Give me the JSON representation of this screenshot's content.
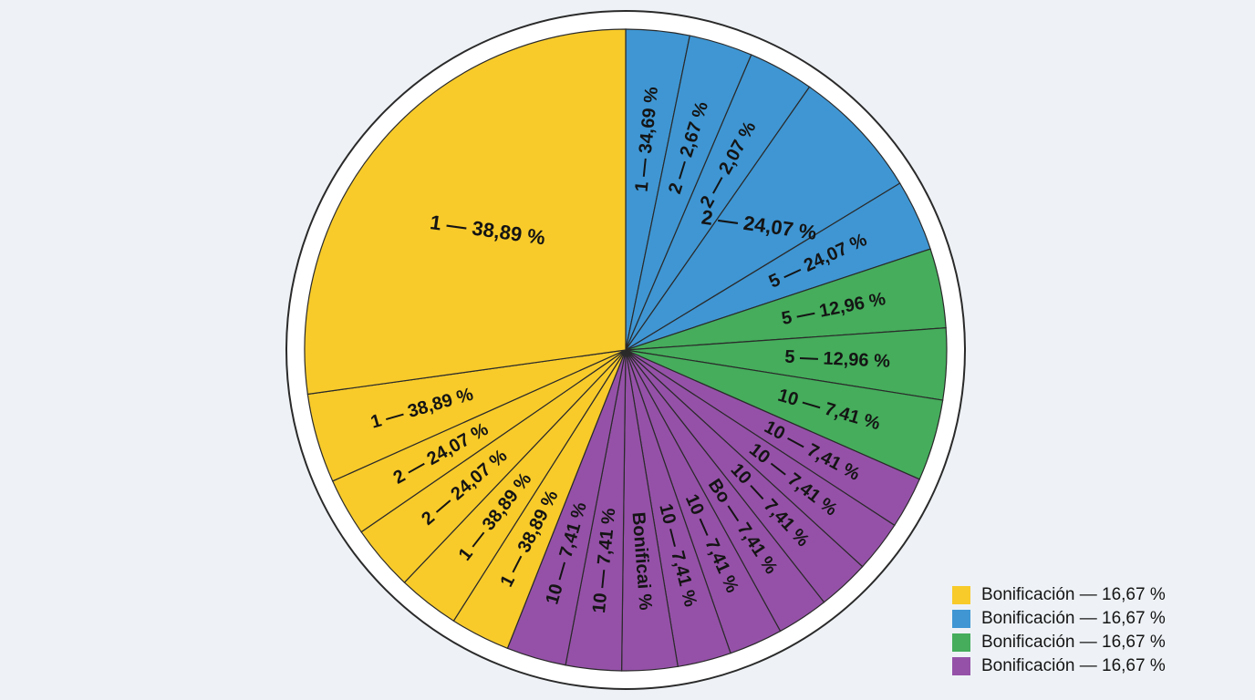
{
  "colors": {
    "yellow": "#f8cb2a",
    "blue": "#3f96d3",
    "green": "#45ad5c",
    "purple": "#9551a8",
    "outline": "#2a2a2a",
    "background": "#eef2f6"
  },
  "chart_data": {
    "type": "pie",
    "start_angle_deg": 0,
    "direction": "clockwise",
    "slices": [
      {
        "label": "1 — 34,69 %",
        "value": 3.2,
        "color": "blue"
      },
      {
        "label": "2 — 2,67 %",
        "value": 3.2,
        "color": "blue"
      },
      {
        "label": "2 — 2,07 %",
        "value": 3.3,
        "color": "blue"
      },
      {
        "label": "2 — 24,07 %",
        "value": 6.6,
        "color": "blue"
      },
      {
        "label": "5 — 24,07 %",
        "value": 3.6,
        "color": "blue"
      },
      {
        "label": "5 — 12,96 %",
        "value": 4.0,
        "color": "green"
      },
      {
        "label": "5 — 12,96 %",
        "value": 3.6,
        "color": "green"
      },
      {
        "label": "10 — 7,41  %",
        "value": 4.1,
        "color": "green"
      },
      {
        "label": "10 — 7,41 %",
        "value": 2.6,
        "color": "purple"
      },
      {
        "label": "10 — 7,41 %",
        "value": 2.6,
        "color": "purple"
      },
      {
        "label": "10 — 7,41 %",
        "value": 2.6,
        "color": "purple"
      },
      {
        "label": "Bo — 7,41 %",
        "value": 2.6,
        "color": "purple"
      },
      {
        "label": "10 — 7,41 %",
        "value": 2.7,
        "color": "purple"
      },
      {
        "label": "10 — 7,41 %",
        "value": 2.7,
        "color": "purple"
      },
      {
        "label": "Bonificai %",
        "value": 2.8,
        "color": "purple"
      },
      {
        "label": "10 — 7,41 %",
        "value": 2.8,
        "color": "purple"
      },
      {
        "label": "10 — 7,41 %",
        "value": 3.0,
        "color": "purple"
      },
      {
        "label": "1 — 38,89 %",
        "value": 3.0,
        "color": "yellow"
      },
      {
        "label": "1 — 38,89 %",
        "value": 3.1,
        "color": "yellow"
      },
      {
        "label": "2 — 24,07 %",
        "value": 3.3,
        "color": "yellow"
      },
      {
        "label": "2 — 24,07 %",
        "value": 2.9,
        "color": "yellow"
      },
      {
        "label": "1 — 38,89 %",
        "value": 4.5,
        "color": "yellow"
      },
      {
        "label": "1 — 38,89 %",
        "value": 27.2,
        "color": "yellow"
      }
    ],
    "legend": {
      "placement": "bottom-right",
      "entries": [
        {
          "label": "Bonificación — 16,67 %",
          "color": "yellow"
        },
        {
          "label": "Bonificación — 16,67 %",
          "color": "blue"
        },
        {
          "label": "Bonificación — 16,67 %",
          "color": "green"
        },
        {
          "label": "Bonificación — 16,67 %",
          "color": "purple"
        }
      ]
    }
  }
}
